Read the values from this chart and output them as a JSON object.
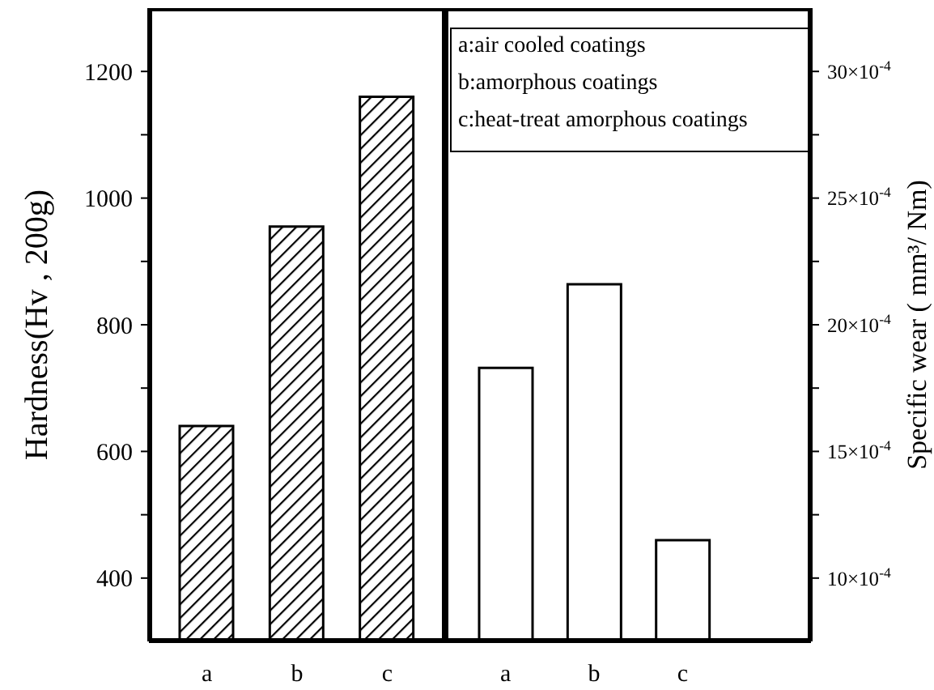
{
  "chart_data": [
    {
      "type": "bar",
      "ylabel": "Hardness(Hv , 200g)",
      "categories": [
        "a",
        "b",
        "c"
      ],
      "series": [
        {
          "color": "#000000",
          "values": [
            640,
            955,
            1160
          ]
        }
      ],
      "ylim": [
        300,
        1300
      ],
      "yticks": [
        400,
        {
          "value": 500,
          "label": null
        },
        600,
        {
          "value": 700,
          "label": null
        },
        800,
        {
          "value": 900,
          "label": null
        },
        1000,
        {
          "value": 1100,
          "label": null
        },
        1200
      ],
      "grid": false
    },
    {
      "type": "bar",
      "ylabel": "Specific wear ( mm³/ Nm)",
      "categories": [
        "a",
        "b",
        "c"
      ],
      "series": [
        {
          "color": "#ffffff",
          "values": [
            0.00183,
            0.00216,
            0.00115
          ]
        }
      ],
      "ylim": [
        0.00075,
        0.00325
      ],
      "yticks": [
        {
          "value": 0.001,
          "label": "10×10$^{-4}$"
        },
        {
          "value": 0.00125,
          "label": null
        },
        {
          "value": 0.0015,
          "label": "15×10$^{-4}$"
        },
        {
          "value": 0.00175,
          "label": null
        },
        {
          "value": 0.002,
          "label": "20×10$^{-4}$"
        },
        {
          "value": 0.00225,
          "label": null
        },
        {
          "value": 0.0025,
          "label": "25×10$^{-4}$"
        },
        {
          "value": 0.00275,
          "label": null
        },
        {
          "value": 0.003,
          "label": "30×10$^{-4}$"
        }
      ],
      "annotations": [
        "a:air cooled coatings",
        "b:amorphous coatings",
        "c:heat-treat amorphous coatings"
      ],
      "grid": false
    }
  ]
}
